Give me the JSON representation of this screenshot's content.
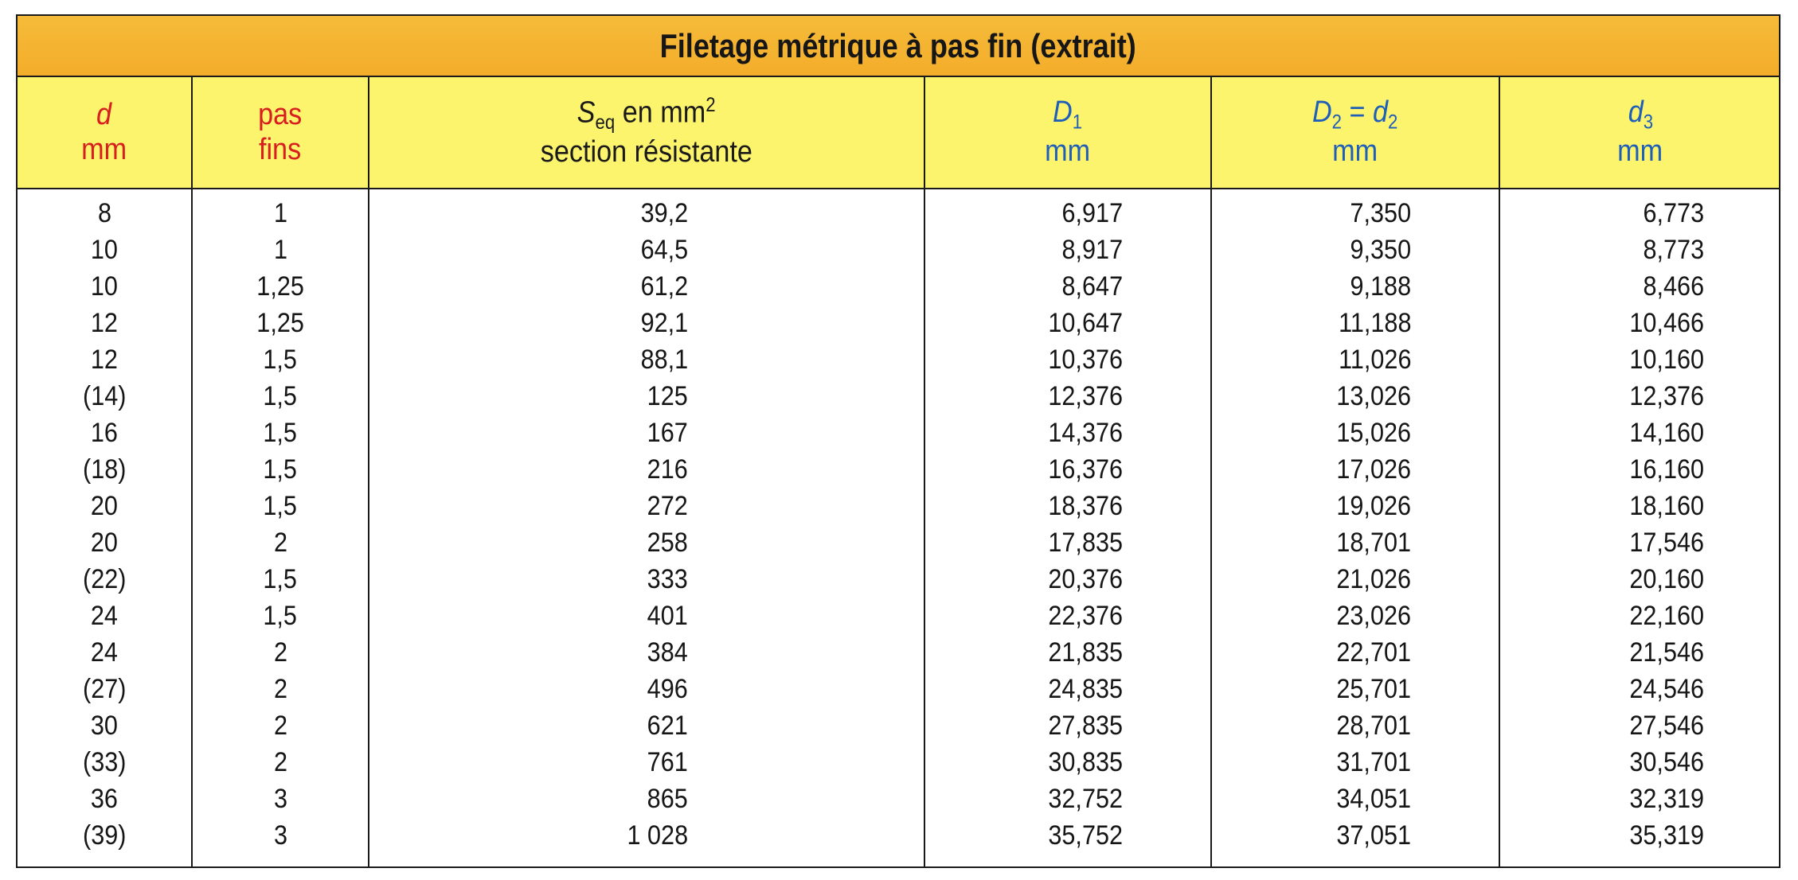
{
  "table": {
    "title": "Filetage métrique à pas fin (extrait)",
    "headers": {
      "d": {
        "symbol": "d",
        "unit": "mm"
      },
      "pas": {
        "line1": "pas",
        "line2": "fins"
      },
      "seq": {
        "symbol": "S",
        "sub": "eq",
        "text": "en mm",
        "sup": "2",
        "line2": "section résistante"
      },
      "D1": {
        "symbol": "D",
        "sub": "1",
        "unit": "mm"
      },
      "D2": {
        "symbol": "D",
        "sub": "2",
        "equals": " = ",
        "symbol2": "d",
        "sub2": "2",
        "unit": "mm"
      },
      "d3": {
        "symbol": "d",
        "sub": "3",
        "unit": "mm"
      }
    },
    "rows": [
      {
        "d": "8",
        "pas": "1",
        "seq": "39,2",
        "D1": "6,917",
        "D2": "7,350",
        "d3": "6,773"
      },
      {
        "d": "10",
        "pas": "1",
        "seq": "64,5",
        "D1": "8,917",
        "D2": "9,350",
        "d3": "8,773"
      },
      {
        "d": "10",
        "pas": "1,25",
        "seq": "61,2",
        "D1": "8,647",
        "D2": "9,188",
        "d3": "8,466"
      },
      {
        "d": "12",
        "pas": "1,25",
        "seq": "92,1",
        "D1": "10,647",
        "D2": "11,188",
        "d3": "10,466"
      },
      {
        "d": "12",
        "pas": "1,5",
        "seq": "88,1",
        "D1": "10,376",
        "D2": "11,026",
        "d3": "10,160"
      },
      {
        "d": "(14)",
        "pas": "1,5",
        "seq": "125",
        "D1": "12,376",
        "D2": "13,026",
        "d3": "12,376"
      },
      {
        "d": "16",
        "pas": "1,5",
        "seq": "167",
        "D1": "14,376",
        "D2": "15,026",
        "d3": "14,160"
      },
      {
        "d": "(18)",
        "pas": "1,5",
        "seq": "216",
        "D1": "16,376",
        "D2": "17,026",
        "d3": "16,160"
      },
      {
        "d": "20",
        "pas": "1,5",
        "seq": "272",
        "D1": "18,376",
        "D2": "19,026",
        "d3": "18,160"
      },
      {
        "d": "20",
        "pas": "2",
        "seq": "258",
        "D1": "17,835",
        "D2": "18,701",
        "d3": "17,546"
      },
      {
        "d": "(22)",
        "pas": "1,5",
        "seq": "333",
        "D1": "20,376",
        "D2": "21,026",
        "d3": "20,160"
      },
      {
        "d": "24",
        "pas": "1,5",
        "seq": "401",
        "D1": "22,376",
        "D2": "23,026",
        "d3": "22,160"
      },
      {
        "d": "24",
        "pas": "2",
        "seq": "384",
        "D1": "21,835",
        "D2": "22,701",
        "d3": "21,546"
      },
      {
        "d": "(27)",
        "pas": "2",
        "seq": "496",
        "D1": "24,835",
        "D2": "25,701",
        "d3": "24,546"
      },
      {
        "d": "30",
        "pas": "2",
        "seq": "621",
        "D1": "27,835",
        "D2": "28,701",
        "d3": "27,546"
      },
      {
        "d": "(33)",
        "pas": "2",
        "seq": "761",
        "D1": "30,835",
        "D2": "31,701",
        "d3": "30,546"
      },
      {
        "d": "36",
        "pas": "3",
        "seq": "865",
        "D1": "32,752",
        "D2": "34,051",
        "d3": "32,319"
      },
      {
        "d": "(39)",
        "pas": "3",
        "seq": "1 028",
        "D1": "35,752",
        "D2": "37,051",
        "d3": "35,319"
      }
    ]
  },
  "colors": {
    "title_band": "#f3ad2a",
    "header_band": "#fdf46e",
    "header_red": "#d81e1e",
    "header_blue": "#1f5fb8"
  }
}
